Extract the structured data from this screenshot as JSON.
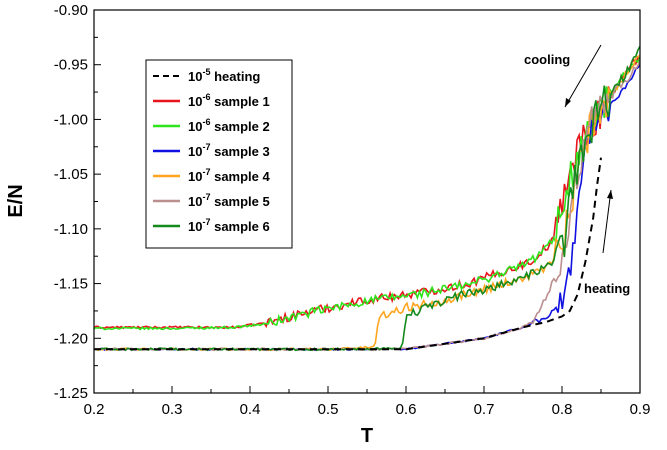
{
  "chart_data": {
    "type": "line",
    "xlabel": "T",
    "ylabel": "E/N",
    "xlim": [
      0.2,
      0.9
    ],
    "ylim": [
      -1.25,
      -0.9
    ],
    "xticks": [
      "0.2",
      "0.3",
      "0.4",
      "0.5",
      "0.6",
      "0.7",
      "0.8",
      "0.9"
    ],
    "yticks": [
      "-0.90",
      "-0.95",
      "-1.00",
      "-1.05",
      "-1.10",
      "-1.15",
      "-1.20",
      "-1.25"
    ],
    "grid": false,
    "legend_position": "top-left",
    "annotations": [
      {
        "text": "cooling"
      },
      {
        "text": "heating"
      }
    ],
    "series": [
      {
        "rate": "10",
        "exp": "-5",
        "label": " heating",
        "color": "#000000",
        "dashed": true,
        "x": [
          0.2,
          0.6,
          0.65,
          0.7,
          0.75,
          0.78,
          0.8,
          0.81,
          0.82,
          0.83,
          0.84,
          0.845,
          0.85
        ],
        "y": [
          -1.21,
          -1.21,
          -1.205,
          -1.2,
          -1.19,
          -1.185,
          -1.18,
          -1.175,
          -1.16,
          -1.13,
          -1.09,
          -1.06,
          -1.035
        ],
        "noise": 0
      },
      {
        "rate": "10",
        "exp": "-6",
        "label": " sample 1",
        "color": "#e8141c",
        "dashed": false,
        "x": [
          0.2,
          0.3,
          0.38,
          0.42,
          0.48,
          0.55,
          0.62,
          0.68,
          0.72,
          0.76,
          0.79,
          0.8,
          0.82,
          0.84,
          0.86,
          0.88,
          0.9
        ],
        "y": [
          -1.19,
          -1.19,
          -1.19,
          -1.186,
          -1.175,
          -1.165,
          -1.158,
          -1.15,
          -1.14,
          -1.13,
          -1.11,
          -1.07,
          -1.03,
          -1.0,
          -0.98,
          -0.96,
          -0.94
        ],
        "noise": 0.004
      },
      {
        "rate": "10",
        "exp": "-6",
        "label": " sample 2",
        "color": "#2ee51c",
        "dashed": false,
        "x": [
          0.2,
          0.3,
          0.38,
          0.42,
          0.48,
          0.55,
          0.62,
          0.68,
          0.72,
          0.76,
          0.79,
          0.8,
          0.82,
          0.84,
          0.86,
          0.88,
          0.9
        ],
        "y": [
          -1.191,
          -1.191,
          -1.19,
          -1.187,
          -1.176,
          -1.166,
          -1.159,
          -1.151,
          -1.141,
          -1.13,
          -1.11,
          -1.075,
          -1.035,
          -1.0,
          -0.98,
          -0.96,
          -0.945
        ],
        "noise": 0.004
      },
      {
        "rate": "10",
        "exp": "-7",
        "label": " sample 3",
        "color": "#1010e0",
        "dashed": false,
        "x": [
          0.2,
          0.5,
          0.6,
          0.65,
          0.7,
          0.75,
          0.78,
          0.8,
          0.81,
          0.82,
          0.83,
          0.84,
          0.85,
          0.87,
          0.9
        ],
        "y": [
          -1.21,
          -1.21,
          -1.21,
          -1.205,
          -1.2,
          -1.19,
          -1.18,
          -1.17,
          -1.14,
          -1.08,
          -1.02,
          -1.01,
          -1.0,
          -0.98,
          -0.95
        ],
        "noise": 0.003
      },
      {
        "rate": "10",
        "exp": "-7",
        "label": " sample 4",
        "color": "#ffa520",
        "dashed": false,
        "x": [
          0.2,
          0.5,
          0.56,
          0.565,
          0.6,
          0.65,
          0.7,
          0.75,
          0.78,
          0.8,
          0.82,
          0.84,
          0.86,
          0.88,
          0.9
        ],
        "y": [
          -1.21,
          -1.21,
          -1.208,
          -1.18,
          -1.172,
          -1.165,
          -1.155,
          -1.145,
          -1.135,
          -1.12,
          -1.05,
          -1.0,
          -0.98,
          -0.96,
          -0.94
        ],
        "noise": 0.004
      },
      {
        "rate": "10",
        "exp": "-7",
        "label": " sample 5",
        "color": "#bc8f8f",
        "dashed": false,
        "x": [
          0.2,
          0.5,
          0.6,
          0.65,
          0.7,
          0.75,
          0.77,
          0.78,
          0.8,
          0.82,
          0.84,
          0.86,
          0.88,
          0.9
        ],
        "y": [
          -1.21,
          -1.21,
          -1.21,
          -1.205,
          -1.2,
          -1.19,
          -1.18,
          -1.16,
          -1.13,
          -1.05,
          -1.0,
          -0.98,
          -0.965,
          -0.95
        ],
        "noise": 0.004
      },
      {
        "rate": "10",
        "exp": "-7",
        "label": " sample 6",
        "color": "#148a1c",
        "dashed": false,
        "x": [
          0.2,
          0.5,
          0.595,
          0.6,
          0.65,
          0.7,
          0.75,
          0.78,
          0.8,
          0.82,
          0.84,
          0.86,
          0.88,
          0.9
        ],
        "y": [
          -1.21,
          -1.21,
          -1.209,
          -1.18,
          -1.165,
          -1.155,
          -1.145,
          -1.135,
          -1.12,
          -1.04,
          -1.0,
          -0.98,
          -0.96,
          -0.935
        ],
        "noise": 0.004
      }
    ]
  }
}
